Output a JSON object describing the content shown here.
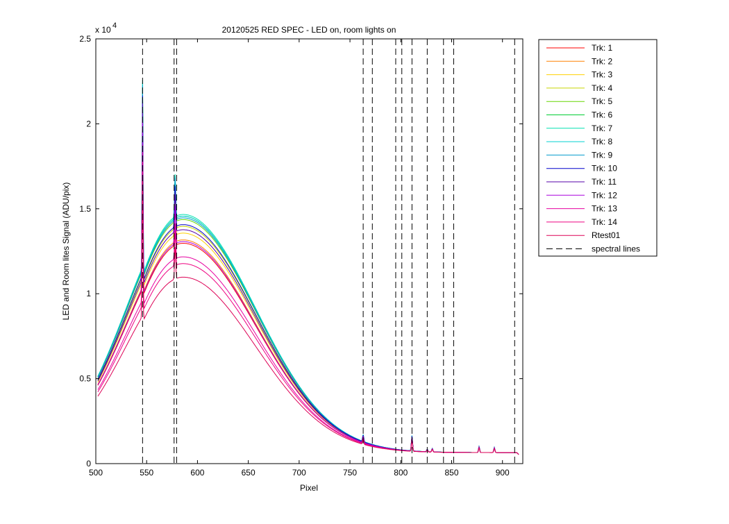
{
  "chart_data": {
    "type": "line",
    "title": "20120525 RED SPEC - LED on, room lights on",
    "xlabel": "Pixel",
    "ylabel": "LED and Room lites Signal (ADU/pix)",
    "y_exponent_label": "x 10",
    "y_exponent": "4",
    "xlim": [
      500,
      920
    ],
    "ylim": [
      0,
      2.5
    ],
    "y_scale_factor": 10000,
    "xticks": [
      500,
      550,
      600,
      650,
      700,
      750,
      800,
      850,
      900
    ],
    "yticks": [
      0,
      0.5,
      1,
      1.5,
      2,
      2.5
    ],
    "ytick_labels": [
      "0",
      "0.5",
      "1",
      "1.5",
      "2",
      "2.5"
    ],
    "grid": false,
    "legend_position": "outside-top-right",
    "spectral_lines_label": "spectral lines",
    "spectral_lines_color": "#000000",
    "spectral_lines_x": [
      546,
      577,
      579.5,
      763,
      772,
      795,
      801,
      811,
      826,
      842,
      852,
      912
    ],
    "emission_peaks": [
      {
        "x": 546,
        "height": 1.1
      },
      {
        "x": 578,
        "height": 0.25
      },
      {
        "x": 763,
        "height": 0.04
      },
      {
        "x": 811,
        "height": 0.09
      },
      {
        "x": 826,
        "height": 0.015
      },
      {
        "x": 831,
        "height": 0.02
      },
      {
        "x": 877,
        "height": 0.035
      },
      {
        "x": 892,
        "height": 0.03
      }
    ],
    "series": [
      {
        "name": "Trk: 1",
        "color": "#ff0000",
        "peak": 1.3
      },
      {
        "name": "Trk: 2",
        "color": "#ff8000",
        "peak": 1.32
      },
      {
        "name": "Trk: 3",
        "color": "#ffd000",
        "peak": 1.36
      },
      {
        "name": "Trk: 4",
        "color": "#c8d400",
        "peak": 1.4
      },
      {
        "name": "Trk: 5",
        "color": "#66d600",
        "peak": 1.44
      },
      {
        "name": "Trk: 6",
        "color": "#00cc33",
        "peak": 1.46
      },
      {
        "name": "Trk: 7",
        "color": "#00e0b0",
        "peak": 1.47
      },
      {
        "name": "Trk: 8",
        "color": "#00d0d0",
        "peak": 1.46
      },
      {
        "name": "Trk: 9",
        "color": "#0099cc",
        "peak": 1.45
      },
      {
        "name": "Trk: 10",
        "color": "#0000cc",
        "peak": 1.41
      },
      {
        "name": "Trk: 11",
        "color": "#5500aa",
        "peak": 1.38
      },
      {
        "name": "Trk: 12",
        "color": "#aa00dd",
        "peak": 1.31
      },
      {
        "name": "Trk: 13",
        "color": "#e600a0",
        "peak": 1.22
      },
      {
        "name": "Trk: 14",
        "color": "#ee0080",
        "peak": 1.18
      },
      {
        "name": "Rtest01",
        "color": "#dd0055",
        "peak": 1.1
      }
    ]
  }
}
